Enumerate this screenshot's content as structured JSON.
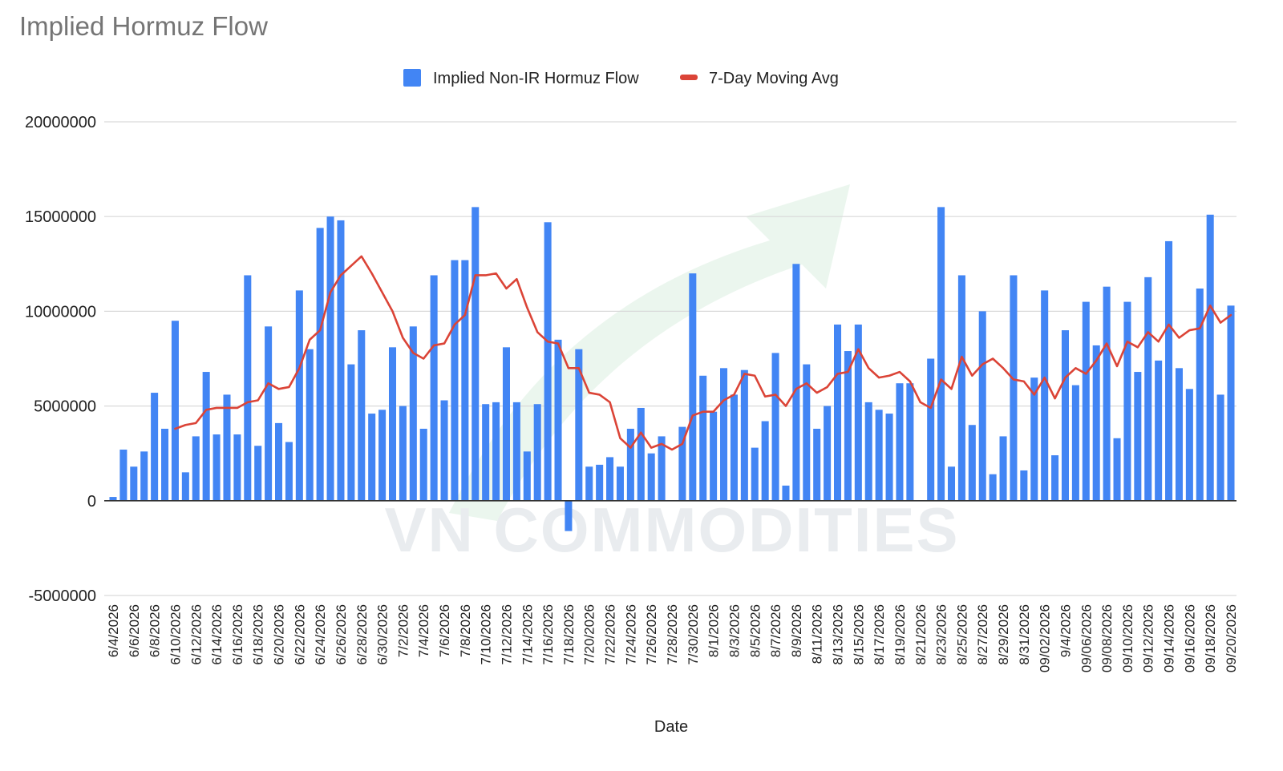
{
  "chart_data": {
    "type": "bar",
    "title": "Implied Hormuz Flow",
    "xlabel": "Date",
    "ylabel": "",
    "ylim": [
      -5000000,
      20000000
    ],
    "yticks": [
      -5000000,
      0,
      5000000,
      10000000,
      15000000,
      20000000
    ],
    "grid": true,
    "legend_position": "top-center",
    "watermark": "VN COMMODITIES",
    "categories": [
      "6/4/2026",
      "6/5/2026",
      "6/6/2026",
      "6/7/2026",
      "6/8/2026",
      "6/9/2026",
      "6/10/2026",
      "6/11/2026",
      "6/12/2026",
      "6/13/2026",
      "6/14/2026",
      "6/15/2026",
      "6/16/2026",
      "6/17/2026",
      "6/18/2026",
      "6/19/2026",
      "6/20/2026",
      "6/21/2026",
      "6/22/2026",
      "6/23/2026",
      "6/24/2026",
      "6/25/2026",
      "6/26/2026",
      "6/27/2026",
      "6/28/2026",
      "6/29/2026",
      "6/30/2026",
      "7/1/2026",
      "7/2/2026",
      "7/3/2026",
      "7/4/2026",
      "7/5/2026",
      "7/6/2026",
      "7/7/2026",
      "7/8/2026",
      "7/9/2026",
      "7/10/2026",
      "7/11/2026",
      "7/12/2026",
      "7/13/2026",
      "7/14/2026",
      "7/15/2026",
      "7/16/2026",
      "7/17/2026",
      "7/18/2026",
      "7/19/2026",
      "7/20/2026",
      "7/21/2026",
      "7/22/2026",
      "7/23/2026",
      "7/24/2026",
      "7/25/2026",
      "7/26/2026",
      "7/27/2026",
      "7/28/2026",
      "7/29/2026",
      "7/30/2026",
      "7/31/2026",
      "8/1/2026",
      "8/2/2026",
      "8/3/2026",
      "8/4/2026",
      "8/5/2026",
      "8/6/2026",
      "8/7/2026",
      "8/8/2026",
      "8/9/2026",
      "8/10/2026",
      "8/11/2026",
      "8/12/2026",
      "8/13/2026",
      "8/14/2026",
      "8/15/2026",
      "8/16/2026",
      "8/17/2026",
      "8/18/2026",
      "8/19/2026",
      "8/20/2026",
      "8/21/2026",
      "8/22/2026",
      "8/23/2026",
      "8/24/2026",
      "8/25/2026",
      "8/26/2026",
      "8/27/2026",
      "8/28/2026",
      "8/29/2026",
      "8/30/2026",
      "8/31/2026",
      "09/01/2026",
      "09/02/2026",
      "09/03/2026",
      "9/4/2026",
      "09/05/2026",
      "09/06/2026",
      "09/07/2026",
      "09/08/2026",
      "09/09/2026",
      "09/10/2026",
      "09/11/2026",
      "09/12/2026",
      "09/13/2026",
      "09/14/2026",
      "09/15/2026",
      "09/16/2026",
      "09/17/2026",
      "09/18/2026",
      "09/19/2026",
      "09/20/2026"
    ],
    "tick_labels": [
      "6/4/2026",
      "6/6/2026",
      "6/8/2026",
      "6/10/2026",
      "6/12/2026",
      "6/14/2026",
      "6/16/2026",
      "6/18/2026",
      "6/20/2026",
      "6/22/2026",
      "6/24/2026",
      "6/26/2026",
      "6/28/2026",
      "6/30/2026",
      "7/2/2026",
      "7/4/2026",
      "7/6/2026",
      "7/8/2026",
      "7/10/2026",
      "7/12/2026",
      "7/14/2026",
      "7/16/2026",
      "7/18/2026",
      "7/20/2026",
      "7/22/2026",
      "7/24/2026",
      "7/26/2026",
      "7/28/2026",
      "7/30/2026",
      "8/1/2026",
      "8/3/2026",
      "8/5/2026",
      "8/7/2026",
      "8/9/2026",
      "8/11/2026",
      "8/13/2026",
      "8/15/2026",
      "8/17/2026",
      "8/19/2026",
      "8/21/2026",
      "8/23/2026",
      "8/25/2026",
      "8/27/2026",
      "8/29/2026",
      "8/31/2026",
      "09/02/2026",
      "9/4/2026",
      "09/06/2026",
      "09/08/2026",
      "09/10/2026",
      "09/12/2026",
      "09/14/2026",
      "09/16/2026",
      "09/18/2026",
      "09/20/2026"
    ],
    "series": [
      {
        "name": "Implied Non-IR Hormuz Flow",
        "type": "bar",
        "color": "#4285f4",
        "values": [
          200000,
          2700000,
          1800000,
          2600000,
          5700000,
          3800000,
          9500000,
          1500000,
          3400000,
          6800000,
          3500000,
          5600000,
          3500000,
          11900000,
          2900000,
          9200000,
          4100000,
          3100000,
          11100000,
          8000000,
          14400000,
          15000000,
          14800000,
          7200000,
          9000000,
          4600000,
          4800000,
          8100000,
          5000000,
          9200000,
          3800000,
          11900000,
          5300000,
          12700000,
          12700000,
          15500000,
          5100000,
          5200000,
          8100000,
          5200000,
          2600000,
          5100000,
          14700000,
          8500000,
          -1600000,
          8000000,
          1800000,
          1900000,
          2300000,
          1800000,
          3800000,
          4900000,
          2500000,
          3400000,
          0,
          3900000,
          12000000,
          6600000,
          4700000,
          7000000,
          5600000,
          6900000,
          2800000,
          4200000,
          7800000,
          800000,
          12500000,
          7200000,
          3800000,
          5000000,
          9300000,
          7900000,
          9300000,
          5200000,
          4800000,
          4600000,
          6200000,
          6200000,
          0,
          7500000,
          15500000,
          1800000,
          11900000,
          4000000,
          10000000,
          1400000,
          3400000,
          11900000,
          1600000,
          6500000,
          11100000,
          2400000,
          9000000,
          6100000,
          10500000,
          8200000,
          11300000,
          3300000,
          10500000,
          6800000,
          11800000,
          7400000,
          13700000,
          7000000,
          5900000,
          11200000,
          15100000,
          5600000,
          10300000
        ]
      },
      {
        "name": "7-Day Moving Avg",
        "type": "line",
        "color": "#db4437",
        "values": [
          null,
          null,
          null,
          null,
          null,
          null,
          3800000,
          4000000,
          4100000,
          4800000,
          4900000,
          4900000,
          4900000,
          5200000,
          5300000,
          6200000,
          5900000,
          6000000,
          7000000,
          8500000,
          9000000,
          11000000,
          11900000,
          12400000,
          12900000,
          12000000,
          11000000,
          10000000,
          8600000,
          7800000,
          7500000,
          8200000,
          8300000,
          9300000,
          9800000,
          11900000,
          11900000,
          12000000,
          11200000,
          11700000,
          10200000,
          8900000,
          8400000,
          8300000,
          7000000,
          7000000,
          5700000,
          5600000,
          5200000,
          3300000,
          2800000,
          3600000,
          2800000,
          3000000,
          2700000,
          3000000,
          4500000,
          4700000,
          4700000,
          5300000,
          5600000,
          6700000,
          6600000,
          5500000,
          5600000,
          5000000,
          5900000,
          6200000,
          5700000,
          6000000,
          6700000,
          6800000,
          8000000,
          7000000,
          6500000,
          6600000,
          6800000,
          6300000,
          5200000,
          4900000,
          6400000,
          5900000,
          7600000,
          6600000,
          7200000,
          7500000,
          7000000,
          6400000,
          6300000,
          5600000,
          6500000,
          5400000,
          6500000,
          7000000,
          6700000,
          7400000,
          8300000,
          7100000,
          8400000,
          8100000,
          8900000,
          8400000,
          9300000,
          8600000,
          9000000,
          9100000,
          10300000,
          9400000,
          9800000
        ]
      }
    ]
  }
}
